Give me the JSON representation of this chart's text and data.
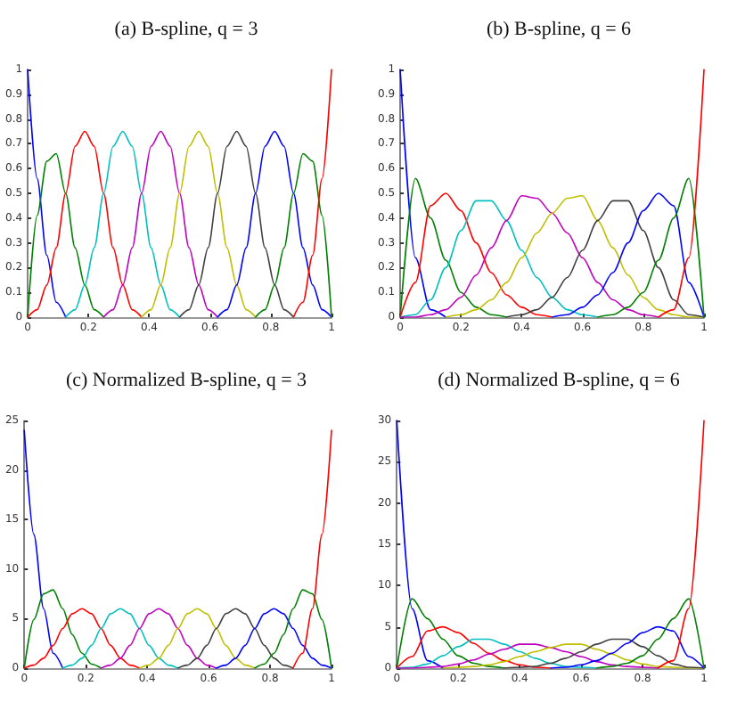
{
  "chart_data": [
    {
      "type": "line",
      "title": "(a) B-spline, q = 3",
      "xlim": [
        0,
        1
      ],
      "ylim": [
        0,
        1
      ],
      "xticks": [
        0,
        0.2,
        0.4,
        0.6,
        0.8,
        1
      ],
      "yticks": [
        0,
        0.1,
        0.2,
        0.3,
        0.4,
        0.5,
        0.6,
        0.7,
        0.8,
        0.9,
        1
      ],
      "marker": "none",
      "line_style": "solid",
      "series": [
        {
          "color": "#0000ff",
          "x": [
            0,
            0.031,
            0.063,
            0.094,
            0.125
          ],
          "values": [
            1,
            0.56,
            0.25,
            0.06,
            0
          ]
        },
        {
          "color": "#008000",
          "x": [
            0,
            0.031,
            0.063,
            0.094,
            0.125,
            0.156,
            0.188,
            0.219,
            0.25
          ],
          "values": [
            0,
            0.41,
            0.63,
            0.66,
            0.5,
            0.28,
            0.13,
            0.03,
            0
          ]
        },
        {
          "color": "#ff0000",
          "x": [
            0,
            0.031,
            0.063,
            0.094,
            0.125,
            0.156,
            0.188,
            0.219,
            0.25,
            0.281,
            0.313,
            0.344,
            0.375
          ],
          "values": [
            0,
            0.03,
            0.13,
            0.28,
            0.5,
            0.69,
            0.75,
            0.69,
            0.5,
            0.28,
            0.13,
            0.03,
            0
          ]
        },
        {
          "color": "#00bfbf",
          "x": [
            0.125,
            0.156,
            0.188,
            0.219,
            0.25,
            0.281,
            0.313,
            0.344,
            0.375,
            0.406,
            0.438,
            0.469,
            0.5
          ],
          "values": [
            0,
            0.03,
            0.13,
            0.28,
            0.5,
            0.69,
            0.75,
            0.69,
            0.5,
            0.28,
            0.13,
            0.03,
            0
          ]
        },
        {
          "color": "#bf00bf",
          "x": [
            0.25,
            0.281,
            0.313,
            0.344,
            0.375,
            0.406,
            0.438,
            0.469,
            0.5,
            0.531,
            0.563,
            0.594,
            0.625
          ],
          "values": [
            0,
            0.03,
            0.13,
            0.28,
            0.5,
            0.69,
            0.75,
            0.69,
            0.5,
            0.28,
            0.13,
            0.03,
            0
          ]
        },
        {
          "color": "#bfbf00",
          "x": [
            0.375,
            0.406,
            0.438,
            0.469,
            0.5,
            0.531,
            0.563,
            0.594,
            0.625,
            0.656,
            0.688,
            0.719,
            0.75
          ],
          "values": [
            0,
            0.03,
            0.13,
            0.28,
            0.5,
            0.69,
            0.75,
            0.69,
            0.5,
            0.28,
            0.13,
            0.03,
            0
          ]
        },
        {
          "color": "#404040",
          "x": [
            0.5,
            0.531,
            0.563,
            0.594,
            0.625,
            0.656,
            0.688,
            0.719,
            0.75,
            0.781,
            0.813,
            0.844,
            0.875
          ],
          "values": [
            0,
            0.03,
            0.13,
            0.28,
            0.5,
            0.69,
            0.75,
            0.69,
            0.5,
            0.28,
            0.13,
            0.03,
            0
          ]
        },
        {
          "color": "#0000ff",
          "x": [
            0.625,
            0.656,
            0.688,
            0.719,
            0.75,
            0.781,
            0.813,
            0.844,
            0.875,
            0.906,
            0.938,
            0.969,
            1
          ],
          "values": [
            0,
            0.03,
            0.13,
            0.28,
            0.5,
            0.69,
            0.75,
            0.69,
            0.5,
            0.28,
            0.13,
            0.03,
            0
          ]
        },
        {
          "color": "#008000",
          "x": [
            0.75,
            0.781,
            0.813,
            0.844,
            0.875,
            0.906,
            0.938,
            0.969,
            1
          ],
          "values": [
            0,
            0.03,
            0.13,
            0.28,
            0.5,
            0.66,
            0.63,
            0.41,
            0
          ]
        },
        {
          "color": "#ff0000",
          "x": [
            0.875,
            0.906,
            0.938,
            0.969,
            1
          ],
          "values": [
            0,
            0.06,
            0.25,
            0.56,
            1
          ]
        }
      ]
    },
    {
      "type": "line",
      "title": "(b) B-spline, q = 6",
      "xlim": [
        0,
        1
      ],
      "ylim": [
        0,
        1
      ],
      "xticks": [
        0,
        0.2,
        0.4,
        0.6,
        0.8,
        1
      ],
      "yticks": [
        0,
        0.1,
        0.2,
        0.3,
        0.4,
        0.5,
        0.6,
        0.7,
        0.8,
        0.9,
        1
      ],
      "marker": "none",
      "line_style": "solid",
      "series": [
        {
          "color": "#0000ff",
          "x": [
            0,
            0.05,
            0.1,
            0.15
          ],
          "values": [
            1,
            0.24,
            0.03,
            0
          ]
        },
        {
          "color": "#008000",
          "x": [
            0,
            0.05,
            0.1,
            0.15,
            0.2,
            0.25,
            0.3,
            0.35
          ],
          "values": [
            0,
            0.56,
            0.4,
            0.23,
            0.1,
            0.04,
            0.01,
            0
          ]
        },
        {
          "color": "#ff0000",
          "x": [
            0,
            0.05,
            0.1,
            0.15,
            0.2,
            0.25,
            0.3,
            0.35,
            0.4,
            0.45,
            0.5
          ],
          "values": [
            0,
            0.14,
            0.45,
            0.5,
            0.43,
            0.3,
            0.18,
            0.09,
            0.04,
            0.01,
            0
          ]
        },
        {
          "color": "#00bfbf",
          "x": [
            0,
            0.05,
            0.1,
            0.15,
            0.2,
            0.25,
            0.3,
            0.35,
            0.4,
            0.45,
            0.5,
            0.55,
            0.6,
            0.65
          ],
          "values": [
            0,
            0.01,
            0.07,
            0.2,
            0.35,
            0.47,
            0.47,
            0.39,
            0.27,
            0.16,
            0.08,
            0.03,
            0.01,
            0
          ]
        },
        {
          "color": "#bf00bf",
          "x": [
            0,
            0.05,
            0.1,
            0.15,
            0.2,
            0.25,
            0.3,
            0.35,
            0.4,
            0.45,
            0.5,
            0.55,
            0.6,
            0.65,
            0.7,
            0.75,
            0.8,
            0.85
          ],
          "values": [
            0,
            0,
            0.01,
            0.03,
            0.08,
            0.17,
            0.28,
            0.39,
            0.49,
            0.48,
            0.42,
            0.34,
            0.24,
            0.14,
            0.07,
            0.03,
            0.01,
            0
          ]
        },
        {
          "color": "#bfbf00",
          "x": [
            0.15,
            0.2,
            0.25,
            0.3,
            0.35,
            0.4,
            0.45,
            0.5,
            0.55,
            0.6,
            0.65,
            0.7,
            0.75,
            0.8,
            0.85,
            0.9,
            0.95,
            1
          ],
          "values": [
            0,
            0.01,
            0.03,
            0.07,
            0.14,
            0.24,
            0.34,
            0.42,
            0.48,
            0.49,
            0.39,
            0.28,
            0.17,
            0.08,
            0.03,
            0.01,
            0,
            0
          ]
        },
        {
          "color": "#404040",
          "x": [
            0.35,
            0.4,
            0.45,
            0.5,
            0.55,
            0.6,
            0.65,
            0.7,
            0.75,
            0.8,
            0.85,
            0.9,
            0.95,
            1
          ],
          "values": [
            0,
            0.01,
            0.03,
            0.08,
            0.16,
            0.27,
            0.39,
            0.47,
            0.47,
            0.35,
            0.2,
            0.07,
            0.01,
            0
          ]
        },
        {
          "color": "#0000ff",
          "x": [
            0.5,
            0.55,
            0.6,
            0.65,
            0.7,
            0.75,
            0.8,
            0.85,
            0.9,
            0.95,
            1
          ],
          "values": [
            0,
            0.01,
            0.04,
            0.09,
            0.18,
            0.3,
            0.43,
            0.5,
            0.45,
            0.14,
            0
          ]
        },
        {
          "color": "#008000",
          "x": [
            0.65,
            0.7,
            0.75,
            0.8,
            0.85,
            0.9,
            0.95,
            1
          ],
          "values": [
            0,
            0.01,
            0.04,
            0.1,
            0.23,
            0.4,
            0.56,
            0
          ]
        },
        {
          "color": "#ff0000",
          "x": [
            0.85,
            0.9,
            0.95,
            1
          ],
          "values": [
            0,
            0.03,
            0.24,
            1
          ]
        }
      ]
    },
    {
      "type": "line",
      "title": "(c) Normalized B-spline, q = 3",
      "xlim": [
        0,
        1
      ],
      "ylim": [
        0,
        25
      ],
      "xticks": [
        0,
        0.2,
        0.4,
        0.6,
        0.8,
        1
      ],
      "yticks": [
        0,
        5,
        10,
        15,
        20,
        25
      ],
      "marker": "none",
      "line_style": "solid",
      "series": [
        {
          "color": "#0000ff",
          "x": [
            0,
            0.031,
            0.063,
            0.094,
            0.125
          ],
          "values": [
            24,
            13.5,
            6,
            1.5,
            0
          ]
        },
        {
          "color": "#008000",
          "x": [
            0,
            0.031,
            0.063,
            0.094,
            0.125,
            0.156,
            0.188,
            0.219,
            0.25
          ],
          "values": [
            0,
            4.9,
            7.5,
            7.9,
            6,
            3.4,
            1.5,
            0.4,
            0
          ]
        },
        {
          "color": "#ff0000",
          "x": [
            0,
            0.031,
            0.063,
            0.094,
            0.125,
            0.156,
            0.188,
            0.219,
            0.25,
            0.281,
            0.313,
            0.344,
            0.375
          ],
          "values": [
            0,
            0.3,
            1,
            2.3,
            4,
            5.5,
            6,
            5.5,
            4,
            2.3,
            1,
            0.3,
            0
          ]
        },
        {
          "color": "#00bfbf",
          "x": [
            0.125,
            0.156,
            0.188,
            0.219,
            0.25,
            0.281,
            0.313,
            0.344,
            0.375,
            0.406,
            0.438,
            0.469,
            0.5
          ],
          "values": [
            0,
            0.3,
            1,
            2.3,
            4,
            5.5,
            6,
            5.5,
            4,
            2.3,
            1,
            0.3,
            0
          ]
        },
        {
          "color": "#bf00bf",
          "x": [
            0.25,
            0.281,
            0.313,
            0.344,
            0.375,
            0.406,
            0.438,
            0.469,
            0.5,
            0.531,
            0.563,
            0.594,
            0.625
          ],
          "values": [
            0,
            0.3,
            1,
            2.3,
            4,
            5.5,
            6,
            5.5,
            4,
            2.3,
            1,
            0.3,
            0
          ]
        },
        {
          "color": "#bfbf00",
          "x": [
            0.375,
            0.406,
            0.438,
            0.469,
            0.5,
            0.531,
            0.563,
            0.594,
            0.625,
            0.656,
            0.688,
            0.719,
            0.75
          ],
          "values": [
            0,
            0.3,
            1,
            2.3,
            4,
            5.5,
            6,
            5.5,
            4,
            2.3,
            1,
            0.3,
            0
          ]
        },
        {
          "color": "#404040",
          "x": [
            0.5,
            0.531,
            0.563,
            0.594,
            0.625,
            0.656,
            0.688,
            0.719,
            0.75,
            0.781,
            0.813,
            0.844,
            0.875
          ],
          "values": [
            0,
            0.3,
            1,
            2.3,
            4,
            5.5,
            6,
            5.5,
            4,
            2.3,
            1,
            0.3,
            0
          ]
        },
        {
          "color": "#0000ff",
          "x": [
            0.625,
            0.656,
            0.688,
            0.719,
            0.75,
            0.781,
            0.813,
            0.844,
            0.875,
            0.906,
            0.938,
            0.969,
            1
          ],
          "values": [
            0,
            0.3,
            1,
            2.3,
            4,
            5.5,
            6,
            5.5,
            4,
            2.3,
            1,
            0.3,
            0
          ]
        },
        {
          "color": "#008000",
          "x": [
            0.75,
            0.781,
            0.813,
            0.844,
            0.875,
            0.906,
            0.938,
            0.969,
            1
          ],
          "values": [
            0,
            0.4,
            1.5,
            3.4,
            6,
            7.9,
            7.5,
            4.9,
            0
          ]
        },
        {
          "color": "#ff0000",
          "x": [
            0.875,
            0.906,
            0.938,
            0.969,
            1
          ],
          "values": [
            0,
            1.5,
            6,
            13.5,
            24
          ]
        }
      ]
    },
    {
      "type": "line",
      "title": "(d) Normalized B-spline, q = 6",
      "xlim": [
        0,
        1
      ],
      "ylim": [
        0,
        30
      ],
      "xticks": [
        0,
        0.2,
        0.4,
        0.6,
        0.8,
        1
      ],
      "yticks": [
        0,
        5,
        10,
        15,
        20,
        25,
        30
      ],
      "marker": "none",
      "line_style": "solid",
      "series": [
        {
          "color": "#0000ff",
          "x": [
            0,
            0.05,
            0.1,
            0.15
          ],
          "values": [
            30,
            7.2,
            0.9,
            0
          ]
        },
        {
          "color": "#008000",
          "x": [
            0,
            0.05,
            0.1,
            0.15,
            0.2,
            0.25,
            0.3,
            0.35
          ],
          "values": [
            0,
            8.4,
            6,
            3.5,
            1.5,
            0.6,
            0.2,
            0
          ]
        },
        {
          "color": "#ff0000",
          "x": [
            0,
            0.05,
            0.1,
            0.15,
            0.2,
            0.25,
            0.3,
            0.35,
            0.4,
            0.45,
            0.5
          ],
          "values": [
            0,
            1.4,
            4.5,
            5,
            4.3,
            3,
            1.8,
            0.9,
            0.4,
            0.1,
            0
          ]
        },
        {
          "color": "#00bfbf",
          "x": [
            0,
            0.05,
            0.1,
            0.15,
            0.2,
            0.25,
            0.3,
            0.35,
            0.4,
            0.45,
            0.5,
            0.55,
            0.6,
            0.65
          ],
          "values": [
            0,
            0.1,
            0.5,
            1.5,
            2.6,
            3.5,
            3.5,
            2.9,
            2,
            1.2,
            0.6,
            0.2,
            0.1,
            0
          ]
        },
        {
          "color": "#bf00bf",
          "x": [
            0,
            0.05,
            0.1,
            0.15,
            0.2,
            0.25,
            0.3,
            0.35,
            0.4,
            0.45,
            0.5,
            0.55,
            0.6,
            0.65,
            0.7,
            0.75,
            0.8,
            0.85
          ],
          "values": [
            0,
            0,
            0.1,
            0.2,
            0.5,
            1,
            1.7,
            2.3,
            2.9,
            2.9,
            2.5,
            2,
            1.4,
            0.8,
            0.4,
            0.2,
            0.1,
            0
          ]
        },
        {
          "color": "#bfbf00",
          "x": [
            0.15,
            0.2,
            0.25,
            0.3,
            0.35,
            0.4,
            0.45,
            0.5,
            0.55,
            0.6,
            0.65,
            0.7,
            0.75,
            0.8,
            0.85,
            0.9,
            0.95,
            1
          ],
          "values": [
            0,
            0.1,
            0.2,
            0.4,
            0.8,
            1.4,
            2,
            2.5,
            2.9,
            2.9,
            2.3,
            1.7,
            1,
            0.5,
            0.2,
            0.1,
            0,
            0
          ]
        },
        {
          "color": "#404040",
          "x": [
            0.35,
            0.4,
            0.45,
            0.5,
            0.55,
            0.6,
            0.65,
            0.7,
            0.75,
            0.8,
            0.85,
            0.9,
            0.95,
            1
          ],
          "values": [
            0,
            0.1,
            0.2,
            0.6,
            1.2,
            2,
            2.9,
            3.5,
            3.5,
            2.6,
            1.5,
            0.5,
            0.1,
            0
          ]
        },
        {
          "color": "#0000ff",
          "x": [
            0.5,
            0.55,
            0.6,
            0.65,
            0.7,
            0.75,
            0.8,
            0.85,
            0.9,
            0.95,
            1
          ],
          "values": [
            0,
            0.1,
            0.4,
            0.9,
            1.8,
            3,
            4.3,
            5,
            4.5,
            1.4,
            0
          ]
        },
        {
          "color": "#008000",
          "x": [
            0.65,
            0.7,
            0.75,
            0.8,
            0.85,
            0.9,
            0.95,
            1
          ],
          "values": [
            0,
            0.2,
            0.6,
            1.5,
            3.5,
            6,
            8.4,
            0
          ]
        },
        {
          "color": "#ff0000",
          "x": [
            0.85,
            0.9,
            0.95,
            1
          ],
          "values": [
            0,
            0.9,
            7.2,
            30
          ]
        }
      ]
    }
  ]
}
